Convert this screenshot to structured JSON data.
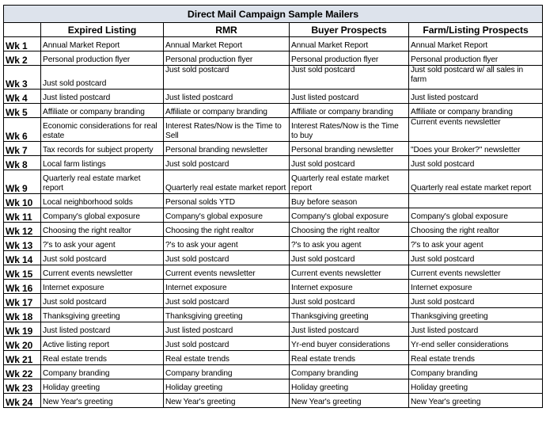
{
  "title": "Direct Mail Campaign Sample Mailers",
  "columns": [
    "",
    "Expired Listing",
    "RMR",
    "Buyer Prospects",
    "Farm/Listing Prospects"
  ],
  "rows": [
    {
      "week": "Wk 1",
      "cells": [
        "Annual Market Report",
        "Annual Market Report",
        "Annual Market Report",
        "Annual Market Report"
      ]
    },
    {
      "week": "Wk 2",
      "cells": [
        "Personal production flyer",
        "Personal production flyer",
        "Personal production flyer",
        "Personal production flyer"
      ]
    },
    {
      "week": "Wk 3",
      "cells": [
        "Just sold postcard",
        "Just sold postcard",
        "Just sold postcard",
        "Just sold postcard w/ all sales in farm"
      ]
    },
    {
      "week": "Wk 4",
      "cells": [
        "Just listed postcard",
        "Just listed postcard",
        "Just listed postcard",
        "Just listed postcard"
      ]
    },
    {
      "week": "Wk 5",
      "cells": [
        "Affiliate or company branding",
        "Affiliate or company branding",
        "Affiliate or company branding",
        "Affiliate or company branding"
      ]
    },
    {
      "week": "Wk 6",
      "cells": [
        "Economic considerations for real estate",
        "Interest Rates/Now is the Time to Sell",
        "Interest Rates/Now is the Time to buy",
        "Current events newsletter"
      ]
    },
    {
      "week": "Wk 7",
      "cells": [
        "Tax records for subject property",
        "Personal branding newsletter",
        "Personal branding newsletter",
        "\"Does your Broker?\" newsletter"
      ]
    },
    {
      "week": "Wk 8",
      "cells": [
        "Local farm listings",
        "Just sold postcard",
        "Just sold postcard",
        "Just sold postcard"
      ]
    },
    {
      "week": "Wk 9",
      "cells": [
        "Quarterly real estate market report",
        "Quarterly real estate market report",
        "Quarterly real estate market report",
        "Quarterly real estate market report"
      ]
    },
    {
      "week": "Wk 10",
      "cells": [
        "Local neighborhood solds",
        "Personal solds YTD",
        "Buy before season",
        ""
      ]
    },
    {
      "week": "Wk 11",
      "cells": [
        "Company's global exposure",
        "Company's global exposure",
        "Company's global exposure",
        "Company's global exposure"
      ]
    },
    {
      "week": "Wk 12",
      "cells": [
        "Choosing the right realtor",
        "Choosing the right realtor",
        "Choosing the right realtor",
        "Choosing the right realtor"
      ]
    },
    {
      "week": "Wk 13",
      "cells": [
        "?'s to ask your agent",
        "?'s to ask your agent",
        "?'s to ask you agent",
        "?'s to ask your agent"
      ]
    },
    {
      "week": "Wk 14",
      "cells": [
        "Just sold postcard",
        "Just sold postcard",
        "Just sold postcard",
        "Just sold postcard"
      ]
    },
    {
      "week": "Wk 15",
      "cells": [
        "Current events newsletter",
        "Current events newsletter",
        "Current events newsletter",
        "Current events newsletter"
      ]
    },
    {
      "week": "Wk 16",
      "cells": [
        "Internet exposure",
        "Internet exposure",
        "Internet exposure",
        "Internet exposure"
      ]
    },
    {
      "week": "Wk 17",
      "cells": [
        "Just sold postcard",
        "Just sold postcard",
        "Just sold postcard",
        "Just sold postcard"
      ]
    },
    {
      "week": "Wk 18",
      "cells": [
        "Thanksgiving greeting",
        "Thanksgiving greeting",
        "Thanksgiving greeting",
        "Thanksgiving greeting"
      ]
    },
    {
      "week": "Wk 19",
      "cells": [
        "Just listed postcard",
        "Just listed postcard",
        "Just listed postcard",
        "Just listed postcard"
      ]
    },
    {
      "week": "Wk 20",
      "cells": [
        "Active listing report",
        "Just sold postcard",
        "Yr-end buyer considerations",
        "Yr-end seller considerations"
      ]
    },
    {
      "week": "Wk 21",
      "cells": [
        "Real estate trends",
        "Real estate trends",
        "Real estate trends",
        "Real estate trends"
      ]
    },
    {
      "week": "Wk 22",
      "cells": [
        "Company branding",
        "Company branding",
        "Company branding",
        "Company branding"
      ]
    },
    {
      "week": "Wk 23",
      "cells": [
        "Holiday greeting",
        "Holiday greeting",
        "Holiday greeting",
        "Holiday greeting"
      ]
    },
    {
      "week": "Wk 24",
      "cells": [
        "New Year's greeting",
        "New Year's greeting",
        "New Year's greeting",
        "New Year's greeting"
      ]
    }
  ]
}
